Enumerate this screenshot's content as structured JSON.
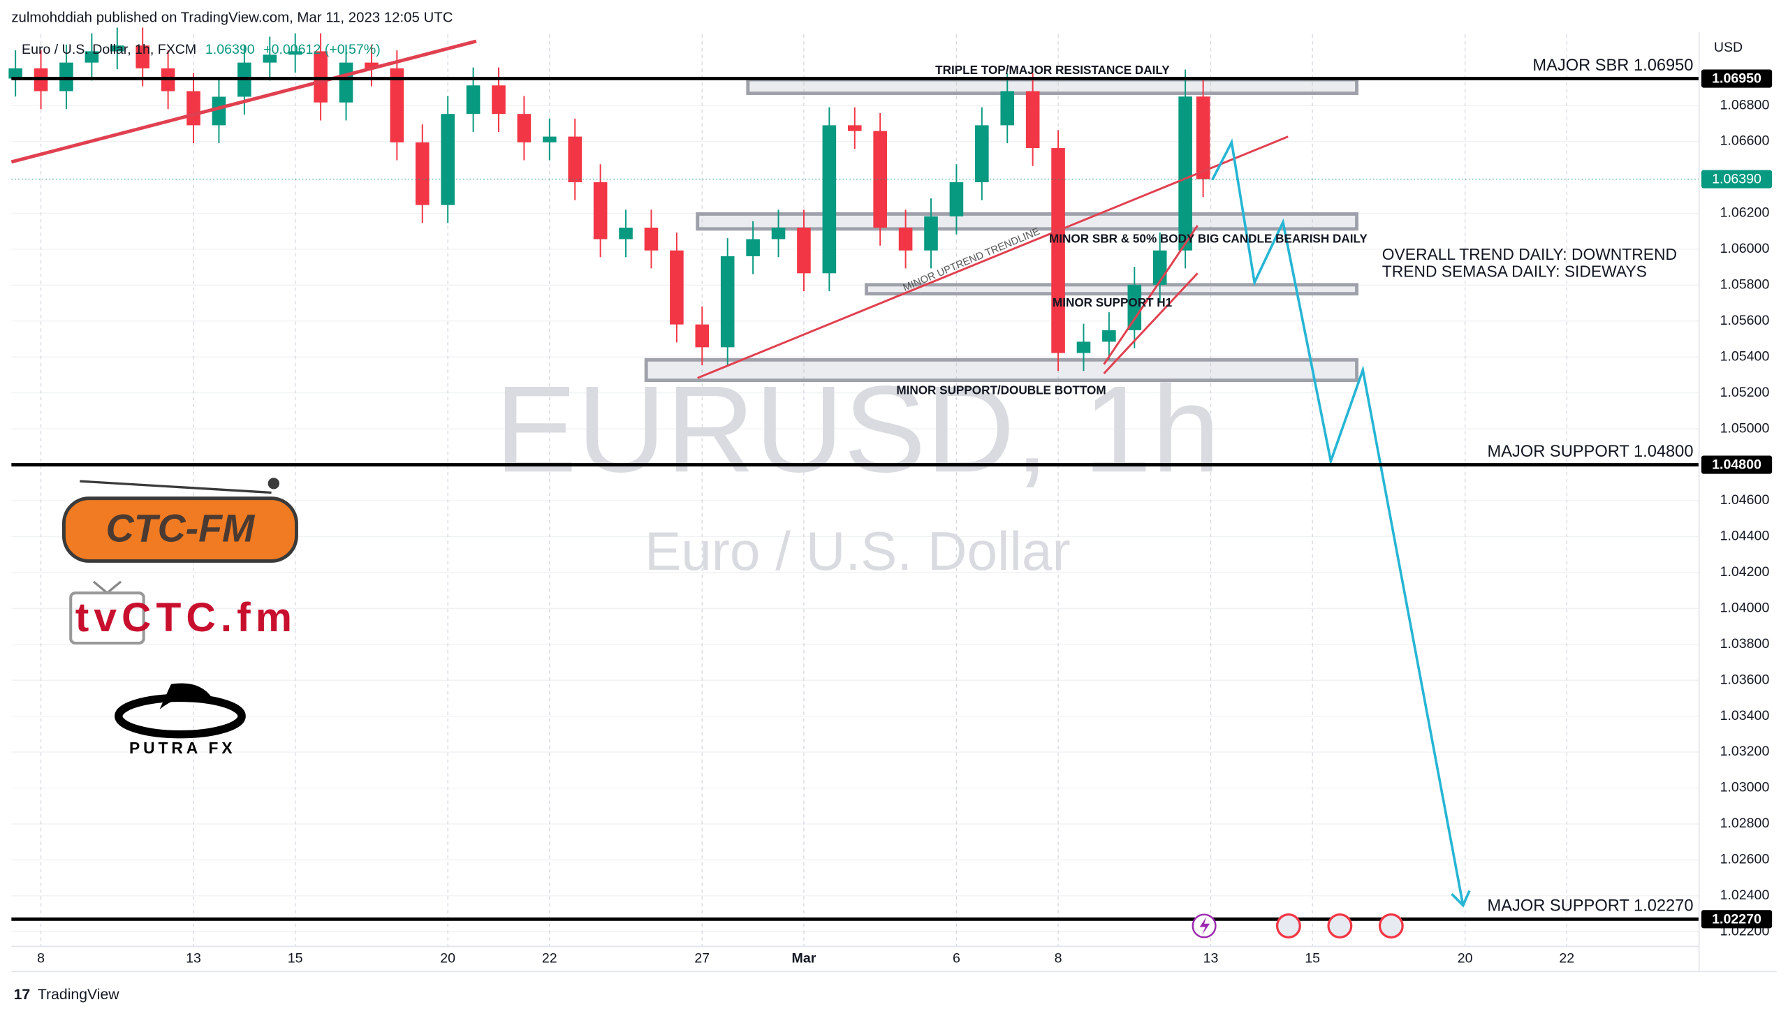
{
  "header": {
    "byline": "zulmohddiah published on TradingView.com, Mar 11, 2023 12:05 UTC"
  },
  "footer": {
    "brand": "TradingView"
  },
  "logos": {
    "ctc_fm": "CTC-FM",
    "tvctc": "tvCTC.fm",
    "putra": "PUTRA FX"
  },
  "chart_data": {
    "type": "candlestick",
    "legend": {
      "symbol": "Euro / U.S. Dollar, 1h, FXCM",
      "price": "1.06390",
      "change": "+0.00612 (+0.57%)"
    },
    "watermark": {
      "title": "EURUSD, 1h",
      "subtitle": "Euro / U.S. Dollar"
    },
    "currency": "USD",
    "up_color": "#089981",
    "down_color": "#f23645",
    "xlim": [
      -0.58,
      32.6
    ],
    "xticks": [
      {
        "value": 0,
        "label": "8"
      },
      {
        "value": 3,
        "label": "13"
      },
      {
        "value": 5,
        "label": "15"
      },
      {
        "value": 8,
        "label": "20"
      },
      {
        "value": 10,
        "label": "22"
      },
      {
        "value": 13,
        "label": "27"
      },
      {
        "value": 15,
        "label": "Mar"
      },
      {
        "value": 18,
        "label": "6"
      },
      {
        "value": 20,
        "label": "8"
      },
      {
        "value": 23,
        "label": "13"
      },
      {
        "value": 25,
        "label": "15"
      },
      {
        "value": 28,
        "label": "20"
      },
      {
        "value": 30,
        "label": "22"
      }
    ],
    "ylim": [
      1.02118,
      1.07197
    ],
    "yticks": [
      {
        "value": 1.022,
        "label": "1.02200"
      },
      {
        "value": 1.024,
        "label": "1.02400"
      },
      {
        "value": 1.026,
        "label": "1.02600"
      },
      {
        "value": 1.028,
        "label": "1.02800"
      },
      {
        "value": 1.03,
        "label": "1.03000"
      },
      {
        "value": 1.032,
        "label": "1.03200"
      },
      {
        "value": 1.034,
        "label": "1.03400"
      },
      {
        "value": 1.036,
        "label": "1.03600"
      },
      {
        "value": 1.038,
        "label": "1.03800"
      },
      {
        "value": 1.04,
        "label": "1.04000"
      },
      {
        "value": 1.042,
        "label": "1.04200"
      },
      {
        "value": 1.044,
        "label": "1.04400"
      },
      {
        "value": 1.046,
        "label": "1.04600"
      },
      {
        "value": 1.05,
        "label": "1.05000"
      },
      {
        "value": 1.052,
        "label": "1.05200"
      },
      {
        "value": 1.054,
        "label": "1.05400"
      },
      {
        "value": 1.056,
        "label": "1.05600"
      },
      {
        "value": 1.058,
        "label": "1.05800"
      },
      {
        "value": 1.06,
        "label": "1.06000"
      },
      {
        "value": 1.062,
        "label": "1.06200"
      },
      {
        "value": 1.066,
        "label": "1.06600"
      },
      {
        "value": 1.068,
        "label": "1.06800"
      }
    ],
    "grid": true,
    "ohlc": {
      "x": [
        -0.5,
        0,
        0.5,
        1,
        1.5,
        2,
        2.5,
        3,
        3.5,
        4,
        4.5,
        5,
        5.5,
        6,
        6.5,
        7,
        7.5,
        8,
        8.5,
        9,
        9.5,
        10,
        10.5,
        11,
        11.5,
        12,
        12.5,
        13,
        13.5,
        14,
        14.5,
        15,
        15.5,
        16,
        16.5,
        17,
        17.5,
        18,
        18.5,
        19,
        19.5,
        20,
        20.5,
        21,
        21.5,
        22,
        22.5,
        22.85
      ],
      "open": [
        1.0695,
        1.07007,
        1.0688,
        1.07039,
        1.07102,
        1.07134,
        1.07007,
        1.0688,
        1.0669,
        1.06849,
        1.07039,
        1.07083,
        1.07102,
        1.06817,
        1.07039,
        1.07007,
        1.06595,
        1.06246,
        1.06753,
        1.06912,
        1.06753,
        1.06595,
        1.06627,
        1.06373,
        1.06056,
        1.0612,
        1.05993,
        1.05581,
        1.05454,
        1.05961,
        1.06056,
        1.0612,
        1.05866,
        1.0669,
        1.06658,
        1.0612,
        1.05993,
        1.06183,
        1.06373,
        1.0669,
        1.0688,
        1.06563,
        1.05422,
        1.05485,
        1.05549,
        1.05802,
        1.05993,
        1.0685
      ],
      "high": [
        1.07107,
        1.07107,
        1.07139,
        1.07202,
        1.07234,
        1.07234,
        1.07107,
        1.0698,
        1.06949,
        1.07139,
        1.07183,
        1.07202,
        1.07202,
        1.07139,
        1.07139,
        1.07107,
        1.06695,
        1.06853,
        1.07012,
        1.07012,
        1.06853,
        1.06727,
        1.06727,
        1.06473,
        1.0622,
        1.0622,
        1.06093,
        1.05681,
        1.06061,
        1.06156,
        1.0622,
        1.0622,
        1.0679,
        1.0679,
        1.06758,
        1.0622,
        1.06283,
        1.06473,
        1.0679,
        1.0698,
        1.0698,
        1.06663,
        1.05585,
        1.05649,
        1.05902,
        1.06093,
        1.07,
        1.0695
      ],
      "low": [
        1.0685,
        1.0678,
        1.0678,
        1.06939,
        1.07002,
        1.06907,
        1.0678,
        1.0659,
        1.0659,
        1.06749,
        1.06939,
        1.06983,
        1.06717,
        1.06717,
        1.06907,
        1.06495,
        1.06146,
        1.06146,
        1.06653,
        1.06653,
        1.06495,
        1.06495,
        1.06273,
        1.05956,
        1.05956,
        1.05893,
        1.05481,
        1.05354,
        1.05354,
        1.05861,
        1.05956,
        1.05766,
        1.05766,
        1.06558,
        1.0602,
        1.05893,
        1.05893,
        1.06083,
        1.06273,
        1.0659,
        1.06463,
        1.05322,
        1.05322,
        1.05385,
        1.05449,
        1.05702,
        1.05893,
        1.0629
      ],
      "close": [
        1.07007,
        1.0688,
        1.07039,
        1.07102,
        1.07134,
        1.07007,
        1.0688,
        1.0669,
        1.06849,
        1.07039,
        1.07083,
        1.07102,
        1.06817,
        1.07039,
        1.07007,
        1.06595,
        1.06246,
        1.06753,
        1.06912,
        1.06753,
        1.06595,
        1.06627,
        1.06373,
        1.06056,
        1.0612,
        1.05993,
        1.05581,
        1.05454,
        1.05961,
        1.06056,
        1.0612,
        1.05866,
        1.0669,
        1.06658,
        1.0612,
        1.05993,
        1.06183,
        1.06373,
        1.0669,
        1.0688,
        1.06563,
        1.05422,
        1.05485,
        1.05549,
        1.05802,
        1.05993,
        1.0685,
        1.0639
      ]
    },
    "last_price": {
      "value": 1.0639,
      "label": "1.06390",
      "color": "#089981"
    },
    "levels": {
      "labels": [
        "MAJOR SBR 1.06950",
        "MAJOR SUPPORT 1.04800",
        "MAJOR SUPPORT 1.02270"
      ],
      "values": [
        1.0695,
        1.048,
        1.0227
      ],
      "value_labels": [
        "1.06950",
        "1.04800",
        "1.02270"
      ]
    },
    "zones": [
      {
        "label": "TRIPLE TOP/MAJOR RESISTANCE DAILY",
        "x": [
          13.9,
          25.87
        ],
        "y": [
          1.06868,
          1.06944
        ]
      },
      {
        "label": "MINOR SBR & 50% BODY  BIG CANDLE BEARISH DAILY",
        "x": [
          12.91,
          25.87
        ],
        "y": [
          1.06113,
          1.06196
        ]
      },
      {
        "label": "MINOR SUPPORT H1",
        "x": [
          16.23,
          25.87
        ],
        "y": [
          1.05752,
          1.05802
        ]
      },
      {
        "label": "MINOR SUPPORT/DOUBLE BOTTOM",
        "x": [
          11.9,
          25.87
        ],
        "y": [
          1.0527,
          1.05384
        ]
      }
    ],
    "trendlines": [
      {
        "x": [
          -0.58,
          8.56
        ],
        "y": [
          1.06486,
          1.07158
        ],
        "color": "#e0404f"
      },
      {
        "x": [
          12.91,
          24.52
        ],
        "y": [
          1.05283,
          1.06627
        ],
        "color": "#e0404f"
      },
      {
        "x": [
          20.9,
          22.74
        ],
        "y": [
          1.05359,
          1.06132
        ],
        "color": "#e0404f"
      },
      {
        "x": [
          20.9,
          22.74
        ],
        "y": [
          1.05308,
          1.05866
        ],
        "color": "#e0404f"
      }
    ],
    "trendline_label": "MINOR UPTREND TRENDLINE",
    "projection": {
      "x": [
        23.03,
        23.41,
        23.86,
        24.42,
        25.36,
        25.99,
        27.96
      ],
      "y": [
        1.06386,
        1.06595,
        1.05815,
        1.0615,
        1.0482,
        1.05327,
        1.02347
      ],
      "color": "#26b5d4"
    },
    "notes": [
      "OVERALL TREND DAILY: DOWNTREND",
      "TREND SEMASA DAILY:  SIDEWAYS"
    ]
  }
}
